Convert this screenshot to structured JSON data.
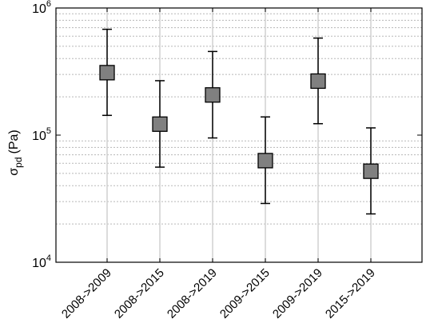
{
  "chart_data": {
    "type": "scatter",
    "title": "",
    "xlabel": "",
    "ylabel": {
      "symbol": "σ",
      "subscript": "pd",
      "unit": "(Pa)"
    },
    "yscale": "log",
    "ylim": [
      10000,
      1000000
    ],
    "y_ticks": [
      {
        "base": "10",
        "exp": "4"
      },
      {
        "base": "10",
        "exp": "5"
      },
      {
        "base": "10",
        "exp": "6"
      }
    ],
    "categories": [
      "2008->2009",
      "2008->2015",
      "2008->2019",
      "2009->2015",
      "2009->2019",
      "2015->2019"
    ],
    "values": [
      310000,
      122000,
      207000,
      63000,
      266000,
      52000
    ],
    "error_low": [
      143000,
      56000,
      95000,
      29000,
      123000,
      24000
    ],
    "error_high": [
      680000,
      268000,
      455000,
      139000,
      580000,
      114000
    ],
    "grid": {
      "x": true,
      "y_minor": true
    },
    "marker": "square",
    "colors": {
      "marker_fill": "#808080",
      "marker_stroke": "#000000",
      "grid_x": "#d0d0d0",
      "grid_y": "#b8b8b8"
    }
  }
}
